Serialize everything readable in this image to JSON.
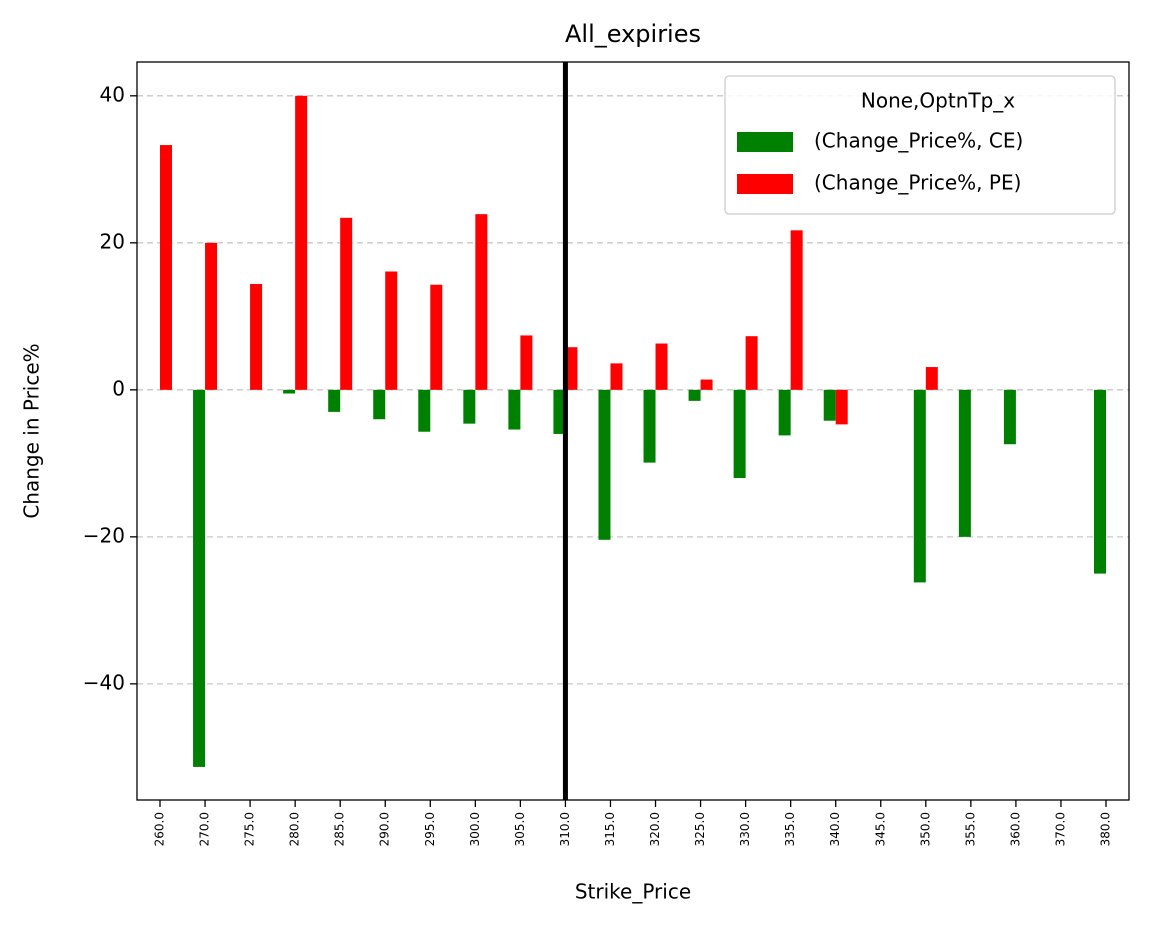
{
  "chart_data": {
    "type": "bar",
    "title": "All_expiries",
    "x_label": "Strike_Price",
    "y_label": "Change in Price%",
    "categories": [
      "260.0",
      "270.0",
      "275.0",
      "280.0",
      "285.0",
      "290.0",
      "295.0",
      "300.0",
      "305.0",
      "310.0",
      "315.0",
      "320.0",
      "325.0",
      "330.0",
      "335.0",
      "340.0",
      "345.0",
      "350.0",
      "355.0",
      "360.0",
      "370.0",
      "380.0"
    ],
    "series": [
      {
        "name": "(Change_Price%, CE)",
        "color": "#008000",
        "values": [
          null,
          -51.3,
          null,
          -0.5,
          -3,
          -4,
          -5.7,
          -4.6,
          -5.4,
          -6,
          -20.4,
          -9.9,
          -1.5,
          -12,
          -6.2,
          -4.2,
          null,
          -26.2,
          -20,
          -7.4,
          null,
          -25
        ]
      },
      {
        "name": "(Change_Price%, PE)",
        "color": "#ff0000",
        "values": [
          33.3,
          20,
          14.4,
          40,
          23.4,
          16.1,
          14.3,
          23.9,
          7.4,
          5.8,
          3.6,
          6.3,
          1.4,
          7.3,
          21.7,
          -4.7,
          null,
          3.1,
          null,
          null,
          null,
          null
        ]
      }
    ],
    "legend_title": "None,OptnTp_x",
    "legend": "upper right",
    "ylim": [
      -55.8,
      44.6
    ],
    "yticks": [
      {
        "value": -40,
        "label": "−40"
      },
      {
        "value": -20,
        "label": "−20"
      },
      0,
      20,
      40
    ],
    "grid": true,
    "vline": {
      "category_index": 9,
      "color": "#000000"
    }
  }
}
